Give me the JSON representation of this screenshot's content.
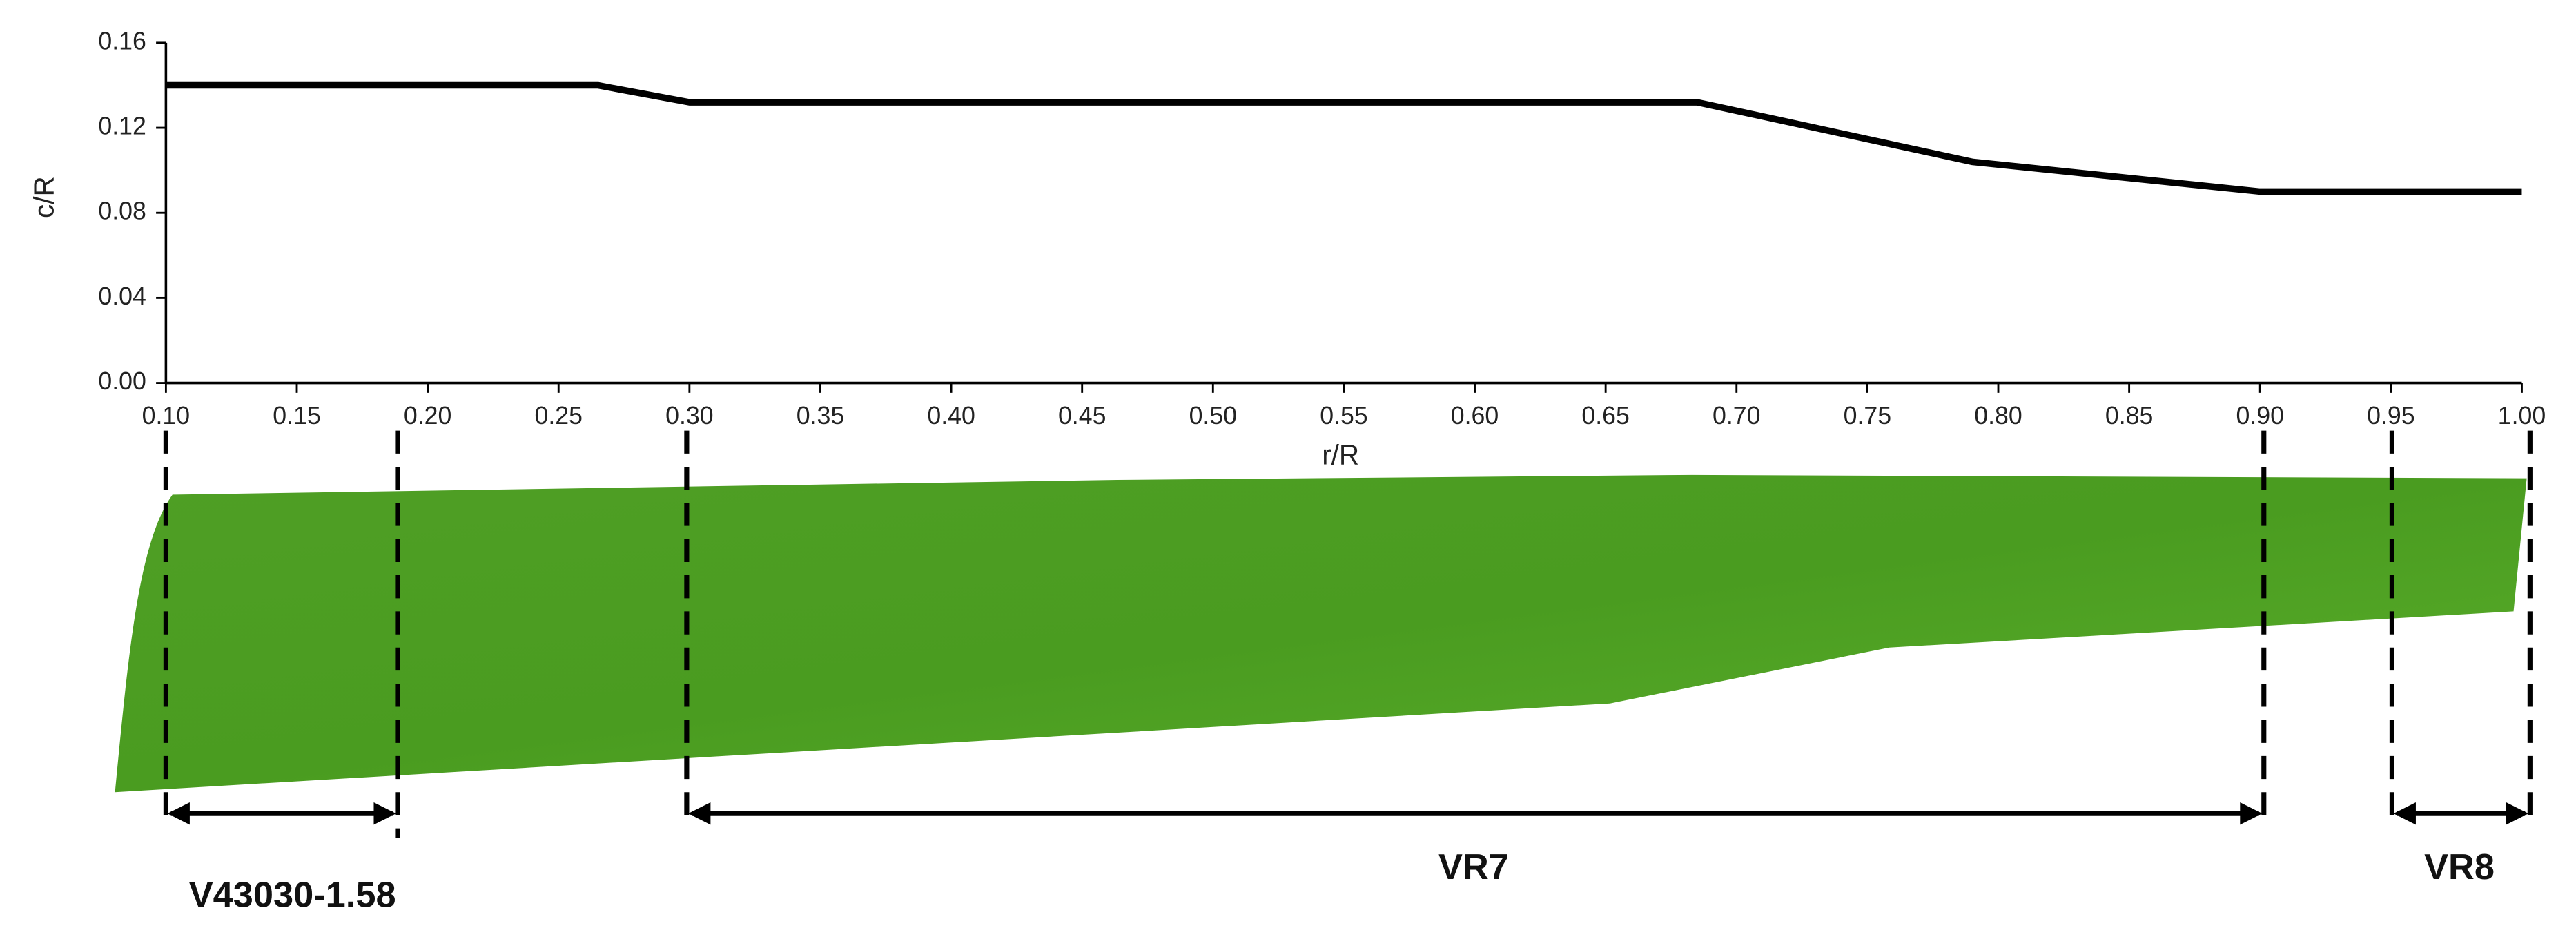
{
  "chart_data": {
    "type": "line",
    "x_label": "r/R",
    "y_label": "c/R",
    "x": [
      0.1,
      0.265,
      0.3,
      0.685,
      0.79,
      0.9,
      1.0
    ],
    "values": [
      0.14,
      0.14,
      0.132,
      0.132,
      0.104,
      0.09,
      0.09
    ],
    "color": "#000000",
    "xlim": [
      0.1,
      1.0
    ],
    "ylim": [
      0,
      0.16
    ],
    "xticks": [
      {
        "value": 0.1,
        "label": "0.10"
      },
      {
        "value": 0.15,
        "label": "0.15"
      },
      {
        "value": 0.2,
        "label": "0.20"
      },
      {
        "value": 0.25,
        "label": "0.25"
      },
      {
        "value": 0.3,
        "label": "0.30"
      },
      {
        "value": 0.35,
        "label": "0.35"
      },
      {
        "value": 0.4,
        "label": "0.40"
      },
      {
        "value": 0.45,
        "label": "0.45"
      },
      {
        "value": 0.5,
        "label": "0.50"
      },
      {
        "value": 0.55,
        "label": "0.55"
      },
      {
        "value": 0.6,
        "label": "0.60"
      },
      {
        "value": 0.65,
        "label": "0.65"
      },
      {
        "value": 0.7,
        "label": "0.70"
      },
      {
        "value": 0.75,
        "label": "0.75"
      },
      {
        "value": 0.8,
        "label": "0.80"
      },
      {
        "value": 0.85,
        "label": "0.85"
      },
      {
        "value": 0.9,
        "label": "0.90"
      },
      {
        "value": 0.95,
        "label": "0.95"
      },
      {
        "value": 1.0,
        "label": "1.00"
      }
    ],
    "yticks": [
      {
        "value": 0,
        "label": "0.00"
      },
      {
        "value": 0.04,
        "label": "0.04"
      },
      {
        "value": 0.08,
        "label": "0.08"
      },
      {
        "value": 0.12,
        "label": "0.12"
      },
      {
        "value": 0.16,
        "label": "0.16"
      }
    ],
    "grid": false,
    "annotations": [
      "V43030-1.58",
      "VR7",
      "VR8"
    ]
  }
}
